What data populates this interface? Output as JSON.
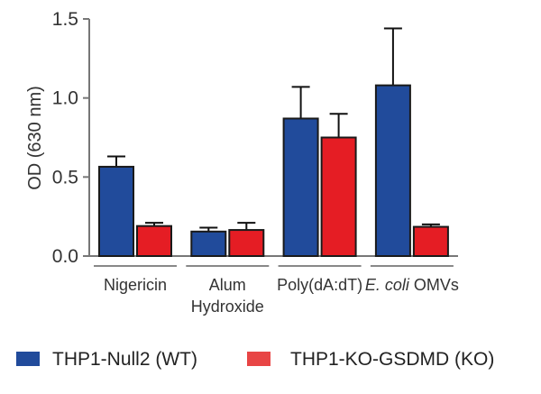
{
  "chart_data": {
    "type": "bar",
    "title": "",
    "xlabel": "",
    "ylabel": "OD (630 nm)",
    "ylim": [
      0,
      1.5
    ],
    "yticks": [
      "0.0",
      "0.5",
      "1.0",
      "1.5"
    ],
    "ytick_values": [
      0,
      0.5,
      1.0,
      1.5
    ],
    "grid": false,
    "legend_position": "bottom",
    "categories": [
      {
        "lines": [
          "Nigericin"
        ],
        "italic_prefix": ""
      },
      {
        "lines": [
          "Alum",
          "Hydroxide"
        ],
        "italic_prefix": ""
      },
      {
        "lines": [
          "Poly(dA:dT)"
        ],
        "italic_prefix": ""
      },
      {
        "lines": [
          " OMVs"
        ],
        "italic_prefix": "E. coli"
      }
    ],
    "category_names": [
      "Nigericin",
      "Alum Hydroxide",
      "Poly(dA:dT)",
      "E. coli OMVs"
    ],
    "series": [
      {
        "name": "THP1-Null2 (WT)",
        "color": "#214b9b",
        "legend_color": "#214b9b",
        "values": [
          0.565,
          0.155,
          0.87,
          1.08
        ],
        "errors": [
          0.065,
          0.025,
          0.2,
          0.36
        ]
      },
      {
        "name": "THP1-KO-GSDMD (KO)",
        "color": "#e51d24",
        "legend_color": "#e84545",
        "values": [
          0.19,
          0.165,
          0.75,
          0.185
        ],
        "errors": [
          0.02,
          0.045,
          0.15,
          0.015
        ]
      }
    ]
  }
}
